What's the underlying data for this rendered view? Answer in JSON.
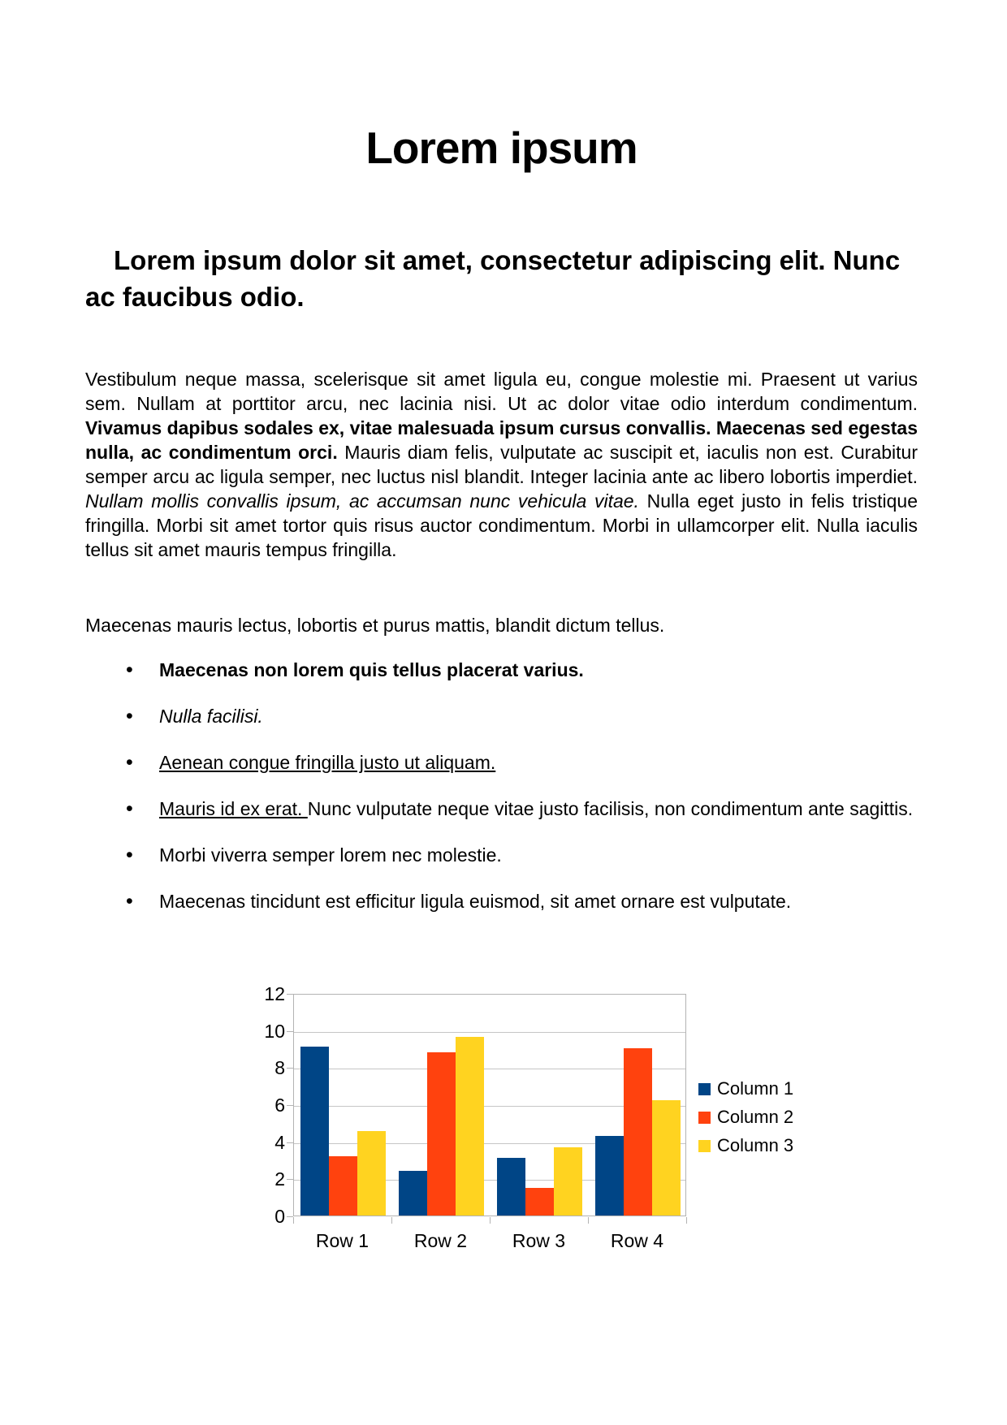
{
  "page": {
    "background": "#ffffff"
  },
  "document": {
    "title": "Lorem ipsum",
    "heading": "Lorem ipsum dolor sit amet, consectetur adipiscing elit. Nunc ac faucibus odio.",
    "paragraph1": {
      "segments": [
        {
          "style": "normal",
          "text": "Vestibulum neque massa, scelerisque sit amet ligula eu, congue molestie mi. Praesent ut varius sem. Nullam at porttitor arcu, nec lacinia nisi. Ut ac dolor vitae odio interdum condimentum. "
        },
        {
          "style": "bold",
          "text": "Vivamus dapibus sodales ex, vitae malesuada ipsum cursus convallis. Maecenas sed egestas nulla, ac condimentum orci."
        },
        {
          "style": "normal",
          "text": " Mauris diam felis, vulputate ac suscipit et, iaculis non est. Curabitur semper arcu ac ligula semper, nec luctus nisl blandit. Integer lacinia ante ac libero lobortis imperdiet. "
        },
        {
          "style": "italic",
          "text": "Nullam mollis convallis ipsum, ac accumsan nunc vehicula vitae."
        },
        {
          "style": "normal",
          "text": " Nulla eget justo in felis tristique fringilla. Morbi sit amet tortor quis risus auctor condimentum. Morbi in ullamcorper elit. Nulla iaculis tellus sit amet mauris tempus fringilla."
        }
      ]
    },
    "paragraph2": "Maecenas mauris lectus, lobortis et purus mattis, blandit dictum tellus.",
    "bullets": [
      {
        "style": "bold",
        "text": "Maecenas non lorem quis tellus placerat varius."
      },
      {
        "style": "italic",
        "text": "Nulla facilisi."
      },
      {
        "style": "underline",
        "text": "Aenean congue fringilla justo ut aliquam. "
      },
      {
        "segments": [
          {
            "style": "underline",
            "text": "Mauris id ex erat. "
          },
          {
            "style": "normal",
            "text": "Nunc vulputate neque vitae justo facilisis, non condimentum ante sagittis."
          }
        ]
      },
      {
        "style": "normal",
        "text": "Morbi viverra semper lorem nec molestie."
      },
      {
        "style": "normal",
        "text": "Maecenas tincidunt est efficitur ligula euismod, sit amet ornare est vulputate."
      }
    ]
  },
  "chart_data": {
    "type": "bar",
    "categories": [
      "Row 1",
      "Row 2",
      "Row 3",
      "Row 4"
    ],
    "series": [
      {
        "name": "Column 1",
        "color": "#004586",
        "values": [
          9.1,
          2.4,
          3.1,
          4.3
        ]
      },
      {
        "name": "Column 2",
        "color": "#ff420e",
        "values": [
          3.2,
          8.8,
          1.5,
          9.02
        ]
      },
      {
        "name": "Column 3",
        "color": "#ffd320",
        "values": [
          4.54,
          9.65,
          3.7,
          6.2
        ]
      }
    ],
    "title": "",
    "xlabel": "",
    "ylabel": "",
    "ylim": [
      0,
      12
    ],
    "ytick_step": 2,
    "grid": true,
    "legend_position": "right",
    "gridline_color": "#c6c6c6",
    "axis_color": "#b3b3b3"
  }
}
